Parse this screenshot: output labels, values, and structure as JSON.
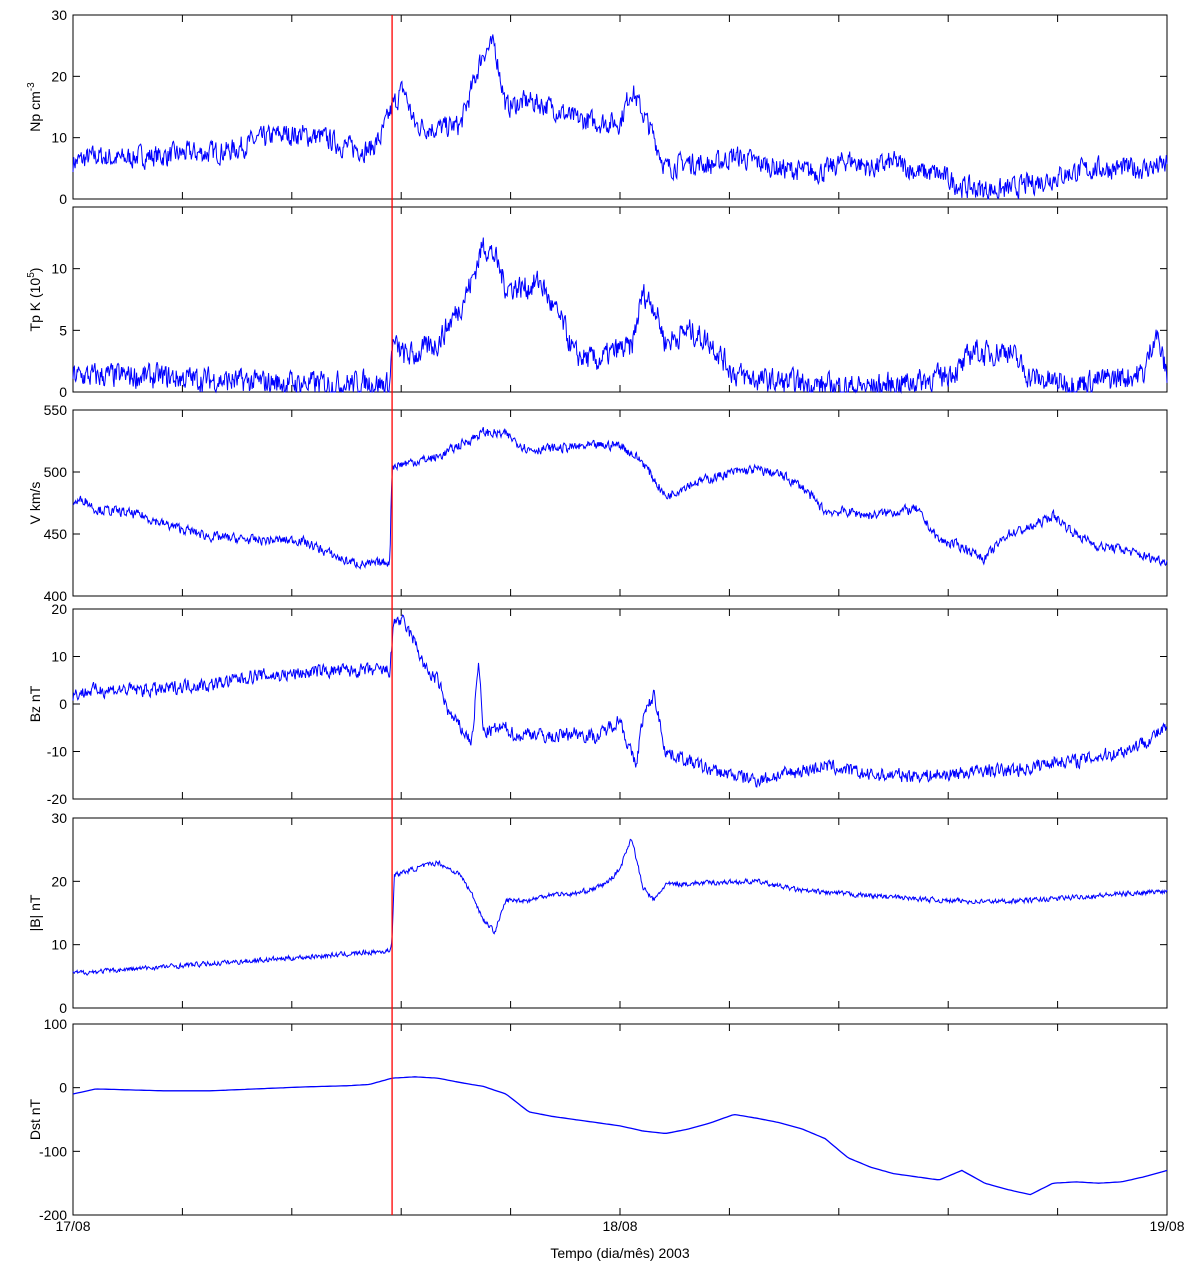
{
  "figure": {
    "xlabel": "Tempo (dia/mês) 2003",
    "x_ticks": [
      {
        "value": 0,
        "label": "17/08"
      },
      {
        "value": 24,
        "label": "18/08"
      },
      {
        "value": 48,
        "label": "19/08"
      }
    ],
    "x_range_hours": [
      0,
      48
    ],
    "minor_tick_step_hours": 4.8,
    "event_marker_hour": 14.0,
    "line_color": "#0000ff",
    "marker_color": "#ff0000"
  },
  "chart_data": [
    {
      "type": "line",
      "ylabel": "Np cm-3",
      "ylabel_sup": "-3",
      "ylim": [
        0,
        30
      ],
      "yticks": [
        "0",
        "10",
        "20",
        "30"
      ],
      "noise": 1.6,
      "series": [
        {
          "values_hours": [
            0,
            1,
            2,
            3,
            4,
            5,
            6,
            7,
            8,
            9,
            10,
            11,
            12,
            13,
            13.5,
            14,
            14.5,
            15,
            16,
            17,
            18,
            18.5,
            19,
            20,
            21,
            22,
            23,
            24,
            24.5,
            25,
            25.5,
            26,
            27,
            28,
            29,
            30,
            31,
            32,
            33,
            34,
            35,
            36,
            37,
            38,
            39,
            40,
            41,
            42,
            43,
            44,
            45,
            46,
            47,
            48
          ],
          "values": [
            6,
            7,
            6.5,
            7,
            7,
            7.5,
            7.5,
            8,
            9.5,
            10.5,
            10.5,
            10,
            8.5,
            8,
            10,
            15,
            18,
            12,
            11.5,
            12,
            24,
            25,
            15,
            16,
            15,
            13,
            12.5,
            12.5,
            18,
            14,
            10,
            5,
            6,
            5.5,
            7,
            6,
            5,
            4.5,
            4.5,
            6.5,
            5,
            6,
            4.5,
            4,
            2,
            1.5,
            1.5,
            2.5,
            3.5,
            4.5,
            5,
            5,
            5,
            5.5
          ]
        }
      ]
    },
    {
      "type": "line",
      "ylabel": "Tp K (10",
      "ylabel_sup": "5",
      "ylabel_tail": ")",
      "ylim": [
        0,
        15
      ],
      "yticks": [
        "0",
        "5",
        "10"
      ],
      "noise": 0.9,
      "series": [
        {
          "values_hours": [
            0,
            2,
            4,
            6,
            8,
            10,
            12,
            13,
            13.9,
            14,
            14.5,
            15,
            16,
            17,
            17.5,
            18,
            18.5,
            19,
            20,
            20.5,
            21,
            21.5,
            22,
            23,
            24,
            24.5,
            25,
            25.5,
            26,
            27,
            28,
            29,
            29.5,
            30,
            31,
            32,
            33,
            34,
            35,
            36,
            37,
            38,
            39,
            39.5,
            40,
            41,
            42,
            43,
            44,
            45,
            46,
            47,
            47.5,
            48
          ],
          "values": [
            1.3,
            1.3,
            1.2,
            1.0,
            0.8,
            0.7,
            0.7,
            0.8,
            0.5,
            4,
            3,
            3,
            4,
            7,
            9,
            12,
            11,
            8.5,
            8.5,
            9,
            7,
            5.5,
            3,
            2.5,
            3.5,
            3.5,
            8,
            7,
            4,
            5,
            4,
            1.5,
            1.2,
            1,
            0.8,
            0.7,
            0.5,
            0.4,
            0.4,
            0.6,
            0.9,
            1.2,
            2,
            3.5,
            3,
            3.5,
            1.2,
            0.8,
            0.7,
            0.9,
            1.2,
            1.5,
            5,
            1.3
          ]
        }
      ]
    },
    {
      "type": "line",
      "ylabel": "V km/s",
      "ylim": [
        400,
        550
      ],
      "yticks": [
        "400",
        "450",
        "500",
        "550"
      ],
      "noise": 3.5,
      "series": [
        {
          "values_hours": [
            0,
            0.5,
            1,
            2,
            3,
            4,
            6,
            8,
            10,
            12,
            13,
            13.9,
            14,
            16,
            17,
            18,
            19,
            20,
            22,
            24,
            25,
            26,
            27,
            28,
            29,
            30,
            31,
            32,
            33,
            34,
            35,
            36,
            37,
            38,
            39,
            40,
            41,
            42,
            43,
            44,
            45,
            46,
            47,
            48
          ],
          "values": [
            475,
            478,
            470,
            468,
            465,
            458,
            448,
            445,
            445,
            428,
            425,
            428,
            505,
            512,
            522,
            532,
            530,
            518,
            520,
            522,
            508,
            480,
            490,
            495,
            500,
            502,
            498,
            488,
            468,
            468,
            465,
            468,
            470,
            445,
            440,
            430,
            450,
            455,
            465,
            450,
            440,
            438,
            432,
            428
          ]
        }
      ]
    },
    {
      "type": "line",
      "ylabel": "Bz nT",
      "ylim": [
        -20,
        20
      ],
      "yticks": [
        "-20",
        "-10",
        "0",
        "10",
        "20"
      ],
      "noise": 1.3,
      "series": [
        {
          "values_hours": [
            0,
            1,
            2,
            3,
            4,
            5,
            6,
            7,
            8,
            9,
            10,
            11,
            12,
            13,
            13.9,
            14.1,
            14.5,
            15,
            15.5,
            16,
            16.5,
            17,
            17.5,
            17.8,
            18,
            19,
            19.5,
            20,
            21,
            22,
            23,
            23.5,
            24,
            24.3,
            24.7,
            25,
            25.5,
            26,
            27,
            28,
            29,
            30,
            31,
            32,
            33,
            34,
            35,
            36,
            37,
            38,
            39,
            40,
            41,
            42,
            43,
            44,
            45,
            46,
            47,
            48
          ],
          "values": [
            2,
            3,
            3,
            3,
            3,
            4,
            4,
            5,
            6,
            6,
            6.5,
            7,
            7,
            7,
            7,
            18,
            17,
            13,
            7,
            5,
            -2,
            -5,
            -8,
            9,
            -6,
            -5,
            -7,
            -6,
            -7,
            -6,
            -7,
            -5,
            -3,
            -8,
            -13,
            -3,
            2,
            -10,
            -12,
            -14,
            -15,
            -16,
            -15,
            -14,
            -13,
            -14,
            -15,
            -15,
            -15,
            -15,
            -14.5,
            -14,
            -14,
            -13.5,
            -12,
            -12,
            -11,
            -10,
            -8,
            -5
          ]
        }
      ]
    },
    {
      "type": "line",
      "ylabel": "|B| nT",
      "ylim": [
        0,
        30
      ],
      "yticks": [
        "0",
        "10",
        "20",
        "30"
      ],
      "noise": 0.35,
      "series": [
        {
          "values_hours": [
            0,
            2,
            4,
            6,
            8,
            10,
            12,
            13,
            13.9,
            14,
            14.1,
            15,
            16,
            17,
            17.5,
            18,
            18.5,
            19,
            20,
            21,
            22,
            23,
            23.5,
            24,
            24.5,
            25,
            25.5,
            26,
            28,
            30,
            32,
            34,
            36,
            38,
            40,
            42,
            44,
            46,
            48
          ],
          "values": [
            5.5,
            6,
            6.5,
            7,
            7.5,
            8,
            8.5,
            8.8,
            9,
            11,
            21,
            22,
            23,
            21,
            18,
            14,
            12,
            17,
            17,
            18,
            18,
            19,
            20,
            22,
            27,
            19,
            17,
            19.5,
            19.8,
            20,
            18.5,
            18,
            17.5,
            17,
            16.8,
            17,
            17.5,
            18,
            18.5
          ]
        }
      ]
    },
    {
      "type": "line",
      "ylabel": "Dst nT",
      "ylim": [
        -200,
        100
      ],
      "yticks": [
        "-200",
        "-100",
        "0",
        "100"
      ],
      "noise": 0,
      "series": [
        {
          "values_hours": [
            0,
            1,
            2,
            3,
            4,
            6,
            8,
            10,
            12,
            13,
            14,
            15,
            16,
            17,
            18,
            19,
            20,
            21,
            22,
            23,
            24,
            25,
            26,
            27,
            28,
            29,
            30,
            31,
            32,
            33,
            34,
            35,
            36,
            37,
            38,
            39,
            40,
            41,
            42,
            43,
            44,
            45,
            46,
            47,
            48
          ],
          "values": [
            -10,
            -2,
            -3,
            -4,
            -5,
            -5,
            -2,
            1,
            3,
            5,
            15,
            17,
            15,
            8,
            2,
            -10,
            -38,
            -45,
            -50,
            -55,
            -60,
            -68,
            -72,
            -65,
            -55,
            -42,
            -48,
            -55,
            -65,
            -80,
            -110,
            -125,
            -135,
            -140,
            -145,
            -130,
            -150,
            -160,
            -168,
            -150,
            -148,
            -150,
            -148,
            -140,
            -130
          ]
        }
      ]
    }
  ]
}
